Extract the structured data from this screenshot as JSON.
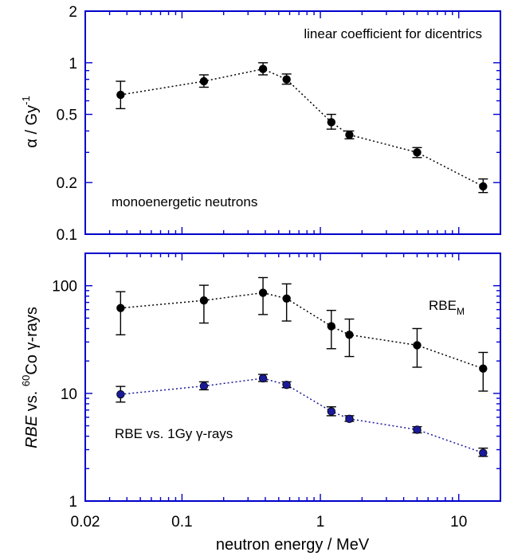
{
  "chart_data": [
    {
      "type": "scatter",
      "xscale": "log",
      "yscale": "log",
      "xlim": [
        0.02,
        20
      ],
      "ylim": [
        0.1,
        2
      ],
      "frame_color": "#0000cc",
      "ylabel": {
        "symbol": "α",
        "text": " / Gy",
        "sup": "-1"
      },
      "yticks": [
        {
          "value": 0.1,
          "label": "0.1"
        },
        {
          "value": 0.2,
          "label": "0.2"
        },
        {
          "value": 0.5,
          "label": "0.5"
        },
        {
          "value": 1,
          "label": "1"
        },
        {
          "value": 2,
          "label": "2"
        }
      ],
      "annotations": [
        "linear coefficient for dicentrics",
        "monoenergetic neutrons"
      ],
      "series": [
        {
          "color": "#000000",
          "points": [
            {
              "x": 0.036,
              "y": 0.65,
              "err_low": 0.54,
              "err_high": 0.78
            },
            {
              "x": 0.144,
              "y": 0.78,
              "err_low": 0.72,
              "err_high": 0.85
            },
            {
              "x": 0.385,
              "y": 0.92,
              "err_low": 0.85,
              "err_high": 1.0
            },
            {
              "x": 0.57,
              "y": 0.8,
              "err_low": 0.75,
              "err_high": 0.86
            },
            {
              "x": 1.2,
              "y": 0.45,
              "err_low": 0.41,
              "err_high": 0.5
            },
            {
              "x": 1.62,
              "y": 0.38,
              "err_low": 0.36,
              "err_high": 0.4
            },
            {
              "x": 5.0,
              "y": 0.3,
              "err_low": 0.28,
              "err_high": 0.32
            },
            {
              "x": 15.0,
              "y": 0.19,
              "err_low": 0.175,
              "err_high": 0.21
            }
          ]
        }
      ]
    },
    {
      "type": "scatter",
      "xscale": "log",
      "yscale": "log",
      "xlim": [
        0.02,
        20
      ],
      "ylim": [
        1,
        200
      ],
      "frame_color": "#0000cc",
      "xlabel": "neutron energy / MeV",
      "ylabel": {
        "italic": "RBE",
        "text": " vs. ",
        "sup": "60",
        "after": "Co ",
        "symbol": "γ",
        "tail": "-rays"
      },
      "xticks": [
        {
          "value": 0.02,
          "label": "0.02"
        },
        {
          "value": 0.1,
          "label": "0.1"
        },
        {
          "value": 1,
          "label": "1"
        },
        {
          "value": 10,
          "label": "10"
        }
      ],
      "yticks": [
        {
          "value": 1,
          "label": "1"
        },
        {
          "value": 10,
          "label": "10"
        },
        {
          "value": 100,
          "label": "100"
        }
      ],
      "series": [
        {
          "name": "RBE_M",
          "label_main": "RBE",
          "label_sub": "M",
          "color": "#000000",
          "points": [
            {
              "x": 0.036,
              "y": 62,
              "err_low": 35,
              "err_high": 88
            },
            {
              "x": 0.144,
              "y": 73,
              "err_low": 45,
              "err_high": 101
            },
            {
              "x": 0.385,
              "y": 86,
              "err_low": 54,
              "err_high": 119
            },
            {
              "x": 0.57,
              "y": 76,
              "err_low": 47,
              "err_high": 104
            },
            {
              "x": 1.2,
              "y": 42,
              "err_low": 26,
              "err_high": 59
            },
            {
              "x": 1.62,
              "y": 35,
              "err_low": 22,
              "err_high": 49
            },
            {
              "x": 5.0,
              "y": 28,
              "err_low": 17.5,
              "err_high": 40
            },
            {
              "x": 15.0,
              "y": 17,
              "err_low": 10.5,
              "err_high": 24
            }
          ]
        },
        {
          "name": "RBE vs. 1Gy γ-rays",
          "label_main": "RBE vs. 1Gy ",
          "label_symbol": "γ",
          "label_tail": "-rays",
          "color": "#1a1a99",
          "points": [
            {
              "x": 0.036,
              "y": 9.8,
              "err_low": 8.3,
              "err_high": 11.6
            },
            {
              "x": 0.144,
              "y": 11.7,
              "err_low": 10.8,
              "err_high": 12.8
            },
            {
              "x": 0.385,
              "y": 13.8,
              "err_low": 12.9,
              "err_high": 15.0
            },
            {
              "x": 0.57,
              "y": 12.0,
              "err_low": 11.3,
              "err_high": 12.8
            },
            {
              "x": 1.2,
              "y": 6.8,
              "err_low": 6.2,
              "err_high": 7.5
            },
            {
              "x": 1.62,
              "y": 5.8,
              "err_low": 5.5,
              "err_high": 6.2
            },
            {
              "x": 5.0,
              "y": 4.6,
              "err_low": 4.3,
              "err_high": 4.9
            },
            {
              "x": 15.0,
              "y": 2.8,
              "err_low": 2.6,
              "err_high": 3.1
            }
          ]
        }
      ]
    }
  ]
}
